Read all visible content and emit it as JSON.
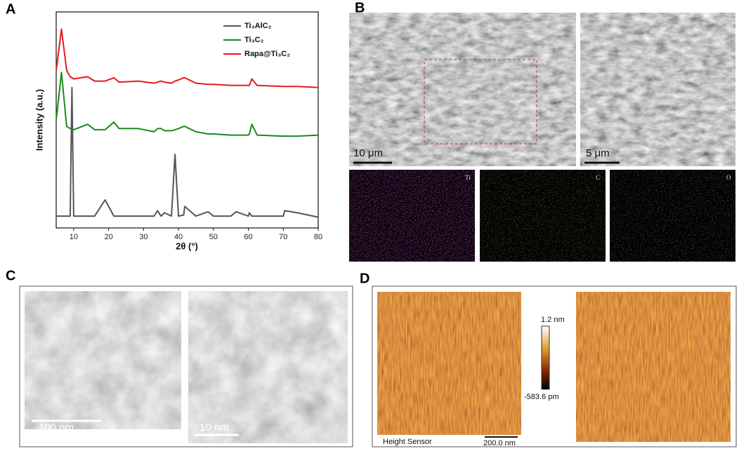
{
  "chart_data": {
    "type": "line",
    "xlabel": "2θ (°)",
    "ylabel": "Intensity (a.u.)",
    "x": [
      5,
      6.5,
      8,
      9,
      9.5,
      10,
      14,
      16,
      19,
      21.5,
      23,
      28.5,
      33,
      34,
      35,
      36,
      38,
      39,
      40,
      41.5,
      41.8,
      45,
      48.5,
      50,
      55,
      56.5,
      60,
      60.3,
      61,
      62.5,
      70,
      70.4,
      74,
      80
    ],
    "series": [
      {
        "name": "Ti₃AlC₂",
        "color": "#555555",
        "values": [
          5.5,
          5.5,
          5.5,
          5.5,
          65,
          5.5,
          5.5,
          5.5,
          13,
          5.5,
          5.5,
          5.5,
          5.5,
          8,
          5.5,
          7,
          5.5,
          34,
          5.5,
          6,
          10,
          5.5,
          7.5,
          5.5,
          5.5,
          7.5,
          5.5,
          7,
          5.5,
          5.5,
          5.5,
          8,
          7,
          5
        ]
      },
      {
        "name": "Ti₃C₂",
        "color": "#1a8a1a",
        "values": [
          50,
          72,
          47,
          46,
          46,
          45.5,
          48,
          45.5,
          45.5,
          49,
          46,
          46,
          44.5,
          46,
          46,
          45,
          45,
          45.5,
          46,
          47,
          47,
          44.5,
          43.5,
          43.5,
          43,
          43,
          43,
          43.5,
          48,
          43,
          42.5,
          42.5,
          42.5,
          43
        ]
      },
      {
        "name": "Rapa@Ti₃C₂",
        "color": "#e8191c",
        "values": [
          73,
          92,
          73,
          70,
          69.5,
          69,
          70,
          68,
          68,
          69.5,
          67.5,
          68,
          67,
          67.5,
          68,
          67.5,
          67,
          68,
          68.5,
          69.5,
          69.5,
          67,
          66.5,
          66.5,
          66,
          66,
          66,
          66,
          69,
          66,
          65.5,
          65.5,
          65.5,
          65
        ]
      }
    ],
    "xlim": [
      5,
      80
    ],
    "ylim": [
      0,
      100
    ],
    "xticks": [
      10,
      20,
      30,
      40,
      50,
      60,
      70,
      80
    ]
  },
  "panels": {
    "a": "A",
    "b": "B",
    "c": "C",
    "d": "D"
  },
  "sem": {
    "scale_left": "10 μm",
    "scale_right": "5 μm"
  },
  "eds": [
    "Ti",
    "C",
    "O"
  ],
  "tem": {
    "scale_left": "100 nm",
    "scale_right": "10 nm"
  },
  "afm": {
    "max": "1.2 nm",
    "min": "-583.6 pm",
    "channel": "Height Sensor",
    "scale": "200.0 nm"
  }
}
